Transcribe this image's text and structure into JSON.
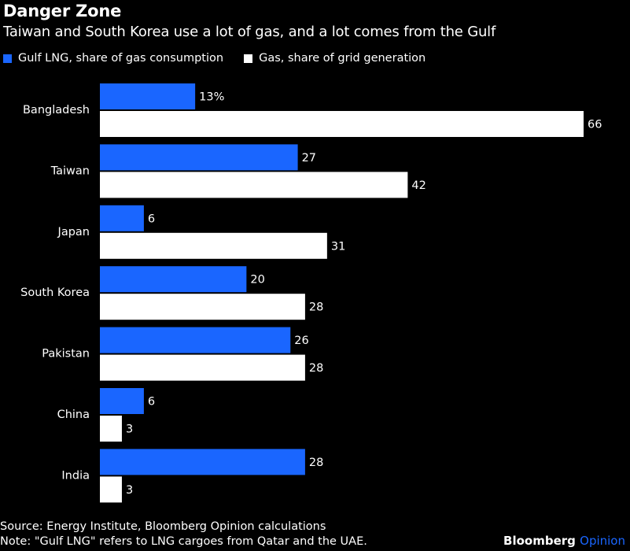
{
  "header": {
    "title": "Danger Zone",
    "subtitle": "Taiwan and South Korea use a lot of gas, and a lot comes from the Gulf"
  },
  "colors": {
    "background": "#000000",
    "series_blue": "#1a66ff",
    "series_white": "#ffffff",
    "text": "#ffffff"
  },
  "chart_data": {
    "type": "bar",
    "orientation": "horizontal",
    "categories": [
      "Bangladesh",
      "Taiwan",
      "Japan",
      "South Korea",
      "Pakistan",
      "China",
      "India"
    ],
    "series": [
      {
        "name": "Gulf LNG, share of gas consumption",
        "values": [
          13,
          27,
          6,
          20,
          26,
          6,
          28
        ],
        "color": "#1a66ff"
      },
      {
        "name": "Gas, share of grid generation",
        "values": [
          66,
          42,
          31,
          28,
          28,
          3,
          3
        ],
        "color": "#ffffff"
      }
    ],
    "data_labels": [
      [
        "13%",
        "27",
        "6",
        "20",
        "26",
        "6",
        "28"
      ],
      [
        "66",
        "42",
        "31",
        "28",
        "28",
        "3",
        "3"
      ]
    ],
    "xlim": [
      0,
      66
    ],
    "grid": false,
    "legend_position": "top-left"
  },
  "footer": {
    "source": "Source: Energy Institute, Bloomberg Opinion calculations",
    "note": "Note: \"Gulf LNG\" refers to LNG cargoes from Qatar and the UAE."
  },
  "brand": {
    "name": "Bloomberg",
    "suffix": "Opinion"
  }
}
